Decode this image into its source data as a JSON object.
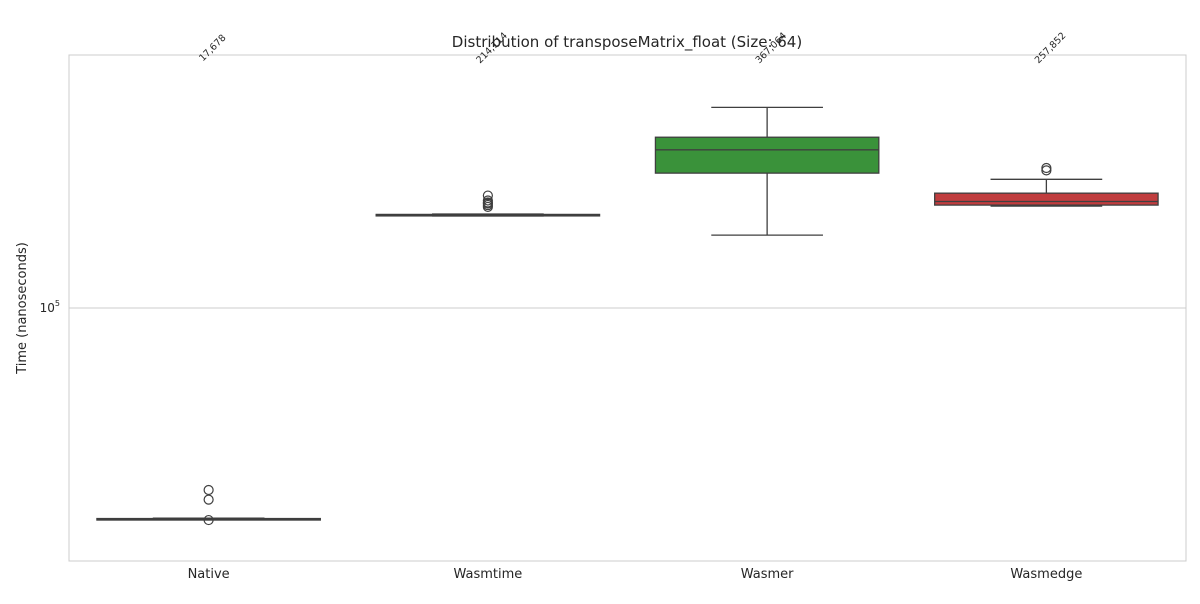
{
  "chart_data": {
    "type": "box",
    "title": "Distribution of transposeMatrix_float (Size: 64)",
    "xlabel": "",
    "ylabel": "Time (nanoseconds)",
    "yscale": "log",
    "ylim": [
      12500,
      800000
    ],
    "yticks": [
      {
        "value": 100000,
        "base": "10",
        "exp": "5"
      }
    ],
    "grid": true,
    "categories": [
      "Native",
      "Wasmtime",
      "Wasmer",
      "Wasmedge"
    ],
    "colors": [
      "#3a7bbf",
      "#e1812c",
      "#3a923a",
      "#c03d3e"
    ],
    "boxes": [
      {
        "category": "Native",
        "whisker_low": 17600,
        "q1": 17620,
        "median": 17650,
        "q3": 17720,
        "whisker_high": 17780,
        "outliers": [
          17500,
          20700,
          22400
        ],
        "label": "17,678"
      },
      {
        "category": "Wasmtime",
        "whisker_low": 213000,
        "q1": 213500,
        "median": 214100,
        "q3": 215800,
        "whisker_high": 216500,
        "outliers": [
          229500,
          233000,
          236000,
          238000,
          242000,
          252000
        ],
        "label": "214,114"
      },
      {
        "category": "Wasmer",
        "whisker_low": 182000,
        "q1": 303000,
        "median": 367000,
        "q3": 407000,
        "whisker_high": 520000,
        "outliers": [],
        "label": "367,064"
      },
      {
        "category": "Wasmedge",
        "whisker_low": 231000,
        "q1": 233000,
        "median": 240000,
        "q3": 257000,
        "whisker_high": 288000,
        "outliers": [
          310000,
          316000
        ],
        "label": "257,852"
      }
    ]
  }
}
